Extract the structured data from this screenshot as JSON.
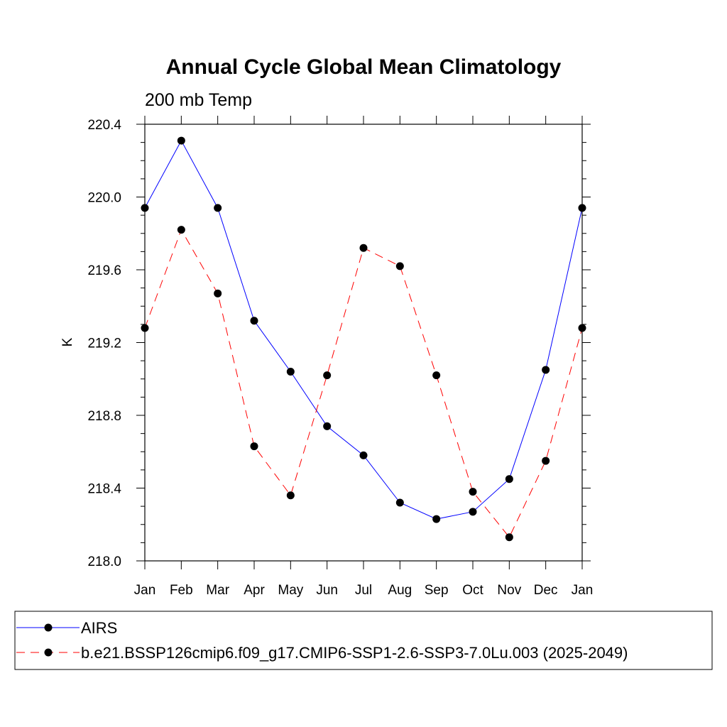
{
  "chart_data": {
    "type": "line",
    "title": "Annual Cycle Global Mean Climatology",
    "subtitle": "200 mb Temp",
    "xlabel": "",
    "ylabel": "K",
    "categories": [
      "Jan",
      "Feb",
      "Mar",
      "Apr",
      "May",
      "Jun",
      "Jul",
      "Aug",
      "Sep",
      "Oct",
      "Nov",
      "Dec",
      "Jan"
    ],
    "ylim": [
      218.0,
      220.4
    ],
    "yticks": [
      218.0,
      218.4,
      218.8,
      219.2,
      219.6,
      220.0,
      220.4
    ],
    "ytick_labels": [
      "218.0",
      "218.4",
      "218.8",
      "219.2",
      "219.6",
      "220.0",
      "220.4"
    ],
    "grid": false,
    "legend_placement": "bottom",
    "series": [
      {
        "name": "AIRS",
        "color": "#0000ff",
        "dash": "solid",
        "values": [
          219.94,
          220.31,
          219.94,
          219.32,
          219.04,
          218.74,
          218.58,
          218.32,
          218.23,
          218.27,
          218.45,
          219.05,
          219.94
        ]
      },
      {
        "name": "b.e21.BSSP126cmip6.f09_g17.CMIP6-SSP1-2.6-SSP3-7.0Lu.003 (2025-2049)",
        "color": "#ff0000",
        "dash": "dashed",
        "values": [
          219.28,
          219.82,
          219.47,
          218.63,
          218.36,
          219.02,
          219.72,
          219.62,
          219.02,
          218.38,
          218.13,
          218.55,
          219.28
        ]
      }
    ]
  }
}
